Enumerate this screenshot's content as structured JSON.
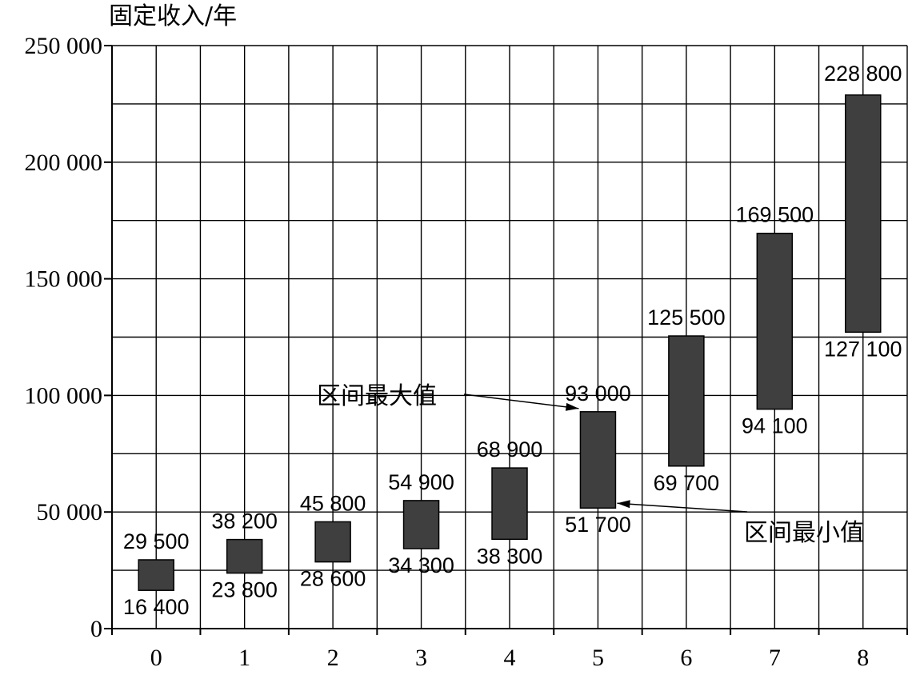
{
  "chart_data": {
    "type": "bar",
    "subtype": "floating-range",
    "title": "",
    "ylabel": "固定收入/年",
    "xlabel": "",
    "ylim": [
      0,
      250000
    ],
    "grid": true,
    "categories": [
      "0",
      "1",
      "2",
      "3",
      "4",
      "5",
      "6",
      "7",
      "8"
    ],
    "ranges": [
      {
        "min": 16400,
        "max": 29500,
        "min_label": "16 400",
        "max_label": "29 500"
      },
      {
        "min": 23800,
        "max": 38200,
        "min_label": "23 800",
        "max_label": "38 200"
      },
      {
        "min": 28600,
        "max": 45800,
        "min_label": "28 600",
        "max_label": "45 800"
      },
      {
        "min": 34300,
        "max": 54900,
        "min_label": "34 300",
        "max_label": "54 900"
      },
      {
        "min": 38300,
        "max": 68900,
        "min_label": "38 300",
        "max_label": "68 900"
      },
      {
        "min": 51700,
        "max": 93000,
        "min_label": "51 700",
        "max_label": "93 000"
      },
      {
        "min": 69700,
        "max": 125500,
        "min_label": "69 700",
        "max_label": "125 500"
      },
      {
        "min": 94100,
        "max": 169500,
        "min_label": "94 100",
        "max_label": "169 500"
      },
      {
        "min": 127100,
        "max": 228800,
        "min_label": "127 100",
        "max_label": "228 800"
      }
    ],
    "y_ticks": [
      {
        "value": 0,
        "label": "0"
      },
      {
        "value": 50000,
        "label": "50 000"
      },
      {
        "value": 100000,
        "label": "100 000"
      },
      {
        "value": 150000,
        "label": "150 000"
      },
      {
        "value": 200000,
        "label": "200 000"
      },
      {
        "value": 250000,
        "label": "250 000"
      }
    ],
    "annotations": {
      "max_label": "区间最大值",
      "min_label": "区间最小值"
    },
    "colors": {
      "bar": "#3f3f3f",
      "grid": "#000000"
    }
  }
}
